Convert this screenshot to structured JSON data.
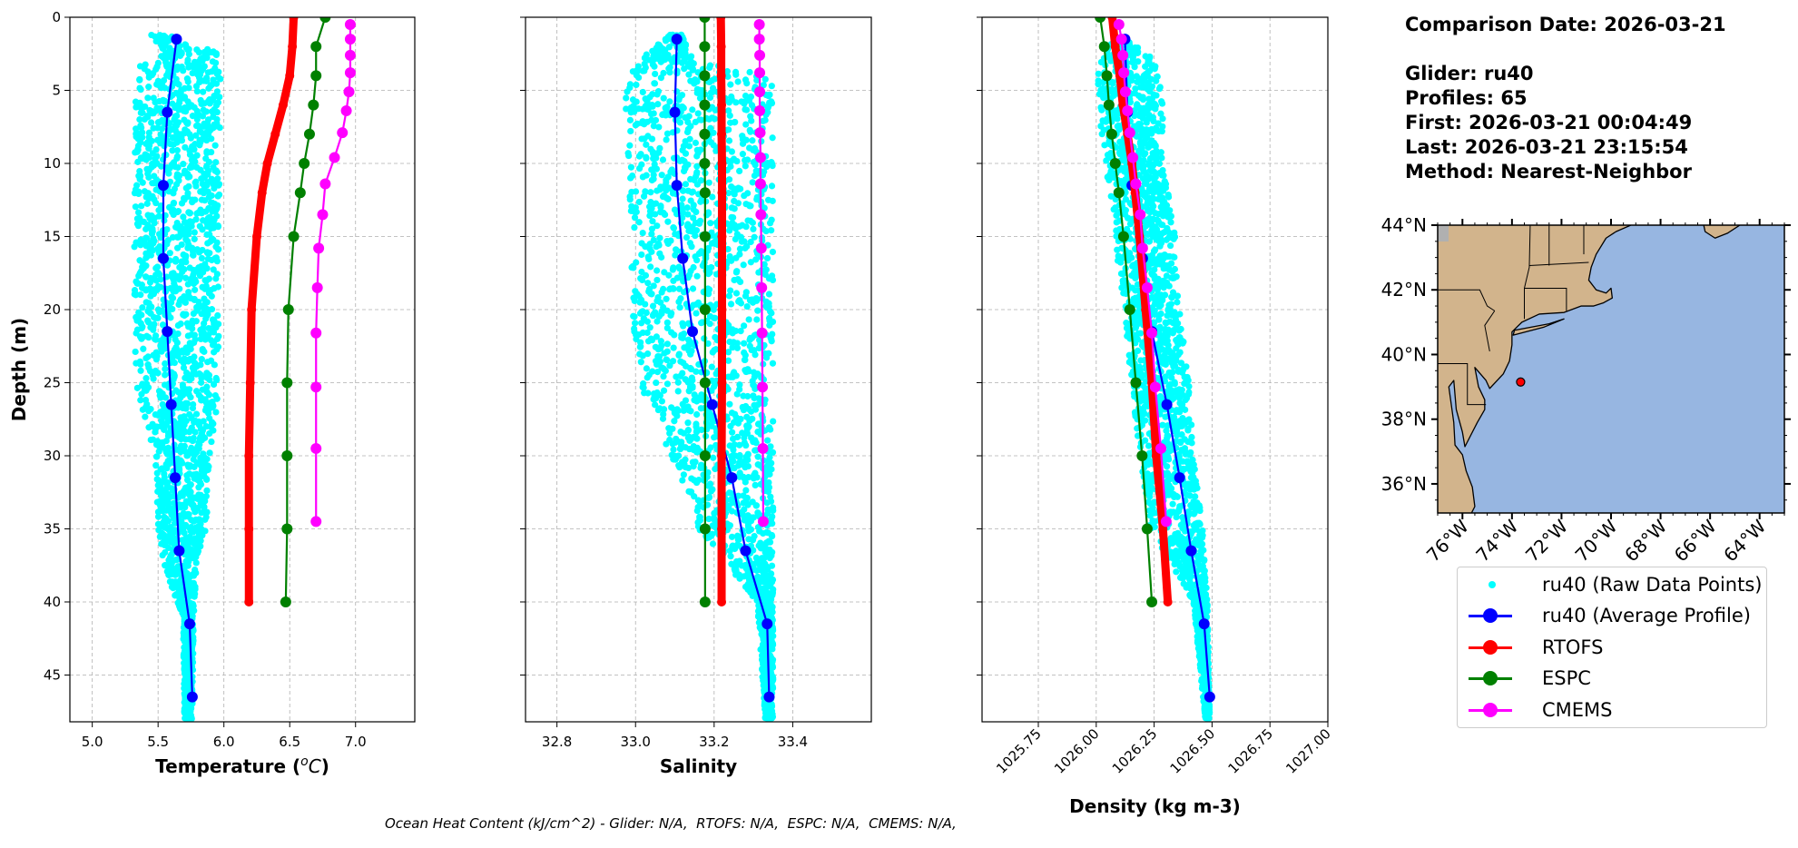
{
  "info": {
    "comparison_date": "Comparison Date: 2026-03-21",
    "glider": "Glider: ru40",
    "profiles": "Profiles: 65",
    "first": "First: 2026-03-21 00:04:49",
    "last": "Last: 2026-03-21 23:15:54",
    "method": "Method: Nearest-Neighbor"
  },
  "footer": "Ocean Heat Content (kJ/cm^2) - Glider: N/A,  RTOFS: N/A,  ESPC: N/A,  CMEMS: N/A,",
  "legend": [
    {
      "label": "ru40 (Raw Data Points)",
      "color": "#00ffff",
      "style": "point"
    },
    {
      "label": "ru40 (Average Profile)",
      "color": "#0000ff",
      "style": "line-marker"
    },
    {
      "label": "RTOFS",
      "color": "#ff0000",
      "style": "line-marker"
    },
    {
      "label": "ESPC",
      "color": "#008000",
      "style": "line-marker"
    },
    {
      "label": "CMEMS",
      "color": "#ff00ff",
      "style": "line-marker"
    }
  ],
  "chart_data": [
    {
      "type": "line",
      "key": "temperature",
      "xlabel_prefix": "Temperature (",
      "xlabel_sup": "o",
      "xlabel_unit": "C",
      "xlabel_suffix": ")",
      "ylabel": "Depth (m)",
      "xlim": [
        4.83,
        7.45
      ],
      "ylim": [
        48.2,
        0
      ],
      "xticks": [
        "5.0",
        "5.5",
        "6.0",
        "6.5",
        "7.0"
      ],
      "yticks": [
        "0",
        "5",
        "10",
        "15",
        "20",
        "25",
        "30",
        "35",
        "40",
        "45"
      ],
      "grid": true,
      "raw": {
        "name": "ru40 (Raw Data Points)",
        "color": "#00ffff",
        "envelope_depth_min_max": [
          [
            1.2,
            5.44,
            5.6
          ],
          [
            2.5,
            5.55,
            5.97
          ],
          [
            3.5,
            5.33,
            5.98
          ],
          [
            15,
            5.32,
            5.96
          ],
          [
            25,
            5.32,
            5.96
          ],
          [
            27,
            5.38,
            5.95
          ],
          [
            30,
            5.48,
            5.89
          ],
          [
            35,
            5.5,
            5.87
          ],
          [
            37,
            5.52,
            5.8
          ],
          [
            41,
            5.69,
            5.77
          ],
          [
            48,
            5.7,
            5.76
          ]
        ]
      },
      "series": [
        {
          "name": "ru40 (Average Profile)",
          "color": "#0000ff",
          "depth": [
            1.5,
            6.5,
            11.5,
            16.5,
            21.5,
            26.5,
            31.5,
            36.5,
            41.5,
            46.5
          ],
          "values": [
            5.64,
            5.57,
            5.54,
            5.54,
            5.57,
            5.6,
            5.63,
            5.66,
            5.74,
            5.76
          ]
        },
        {
          "name": "RTOFS",
          "color": "#ff0000",
          "depth": [
            0,
            2,
            4,
            6,
            8,
            10,
            12,
            15,
            20,
            25,
            30,
            35,
            40
          ],
          "values": [
            6.53,
            6.52,
            6.5,
            6.45,
            6.39,
            6.33,
            6.29,
            6.25,
            6.21,
            6.2,
            6.19,
            6.19,
            6.19
          ]
        },
        {
          "name": "ESPC",
          "color": "#008000",
          "depth": [
            0,
            2,
            4,
            6,
            8,
            10,
            12,
            15,
            20,
            25,
            30,
            35,
            40
          ],
          "values": [
            6.77,
            6.7,
            6.7,
            6.68,
            6.65,
            6.61,
            6.58,
            6.53,
            6.49,
            6.48,
            6.48,
            6.48,
            6.47
          ]
        },
        {
          "name": "CMEMS",
          "color": "#ff00ff",
          "depth": [
            0.5,
            1.5,
            2.6,
            3.8,
            5.1,
            6.4,
            7.9,
            9.6,
            11.4,
            13.5,
            15.8,
            18.5,
            21.6,
            25.3,
            29.5,
            34.5
          ],
          "values": [
            6.96,
            6.96,
            6.96,
            6.96,
            6.95,
            6.93,
            6.9,
            6.84,
            6.77,
            6.75,
            6.72,
            6.71,
            6.7,
            6.7,
            6.7,
            6.7
          ]
        }
      ]
    },
    {
      "type": "line",
      "key": "salinity",
      "xlabel": "Salinity",
      "xlim": [
        32.72,
        33.6
      ],
      "ylim": [
        48.2,
        0
      ],
      "xticks": [
        "32.8",
        "33.0",
        "33.2",
        "33.4"
      ],
      "grid": true,
      "raw": {
        "name": "ru40 (Raw Data Points)",
        "color": "#00ffff",
        "envelope_depth_min_max": [
          [
            1.2,
            33.08,
            33.12
          ],
          [
            3,
            33.01,
            33.15
          ],
          [
            4,
            32.97,
            33.35
          ],
          [
            10,
            32.98,
            33.35
          ],
          [
            20,
            32.99,
            33.35
          ],
          [
            25,
            33.01,
            33.35
          ],
          [
            30,
            33.09,
            33.35
          ],
          [
            35,
            33.16,
            33.35
          ],
          [
            40,
            33.31,
            33.35
          ],
          [
            48,
            33.33,
            33.35
          ]
        ]
      },
      "series": [
        {
          "name": "ru40 (Average Profile)",
          "color": "#0000ff",
          "depth": [
            1.5,
            6.5,
            11.5,
            16.5,
            21.5,
            26.5,
            31.5,
            36.5,
            41.5,
            46.5
          ],
          "values": [
            33.105,
            33.1,
            33.105,
            33.12,
            33.145,
            33.195,
            33.245,
            33.28,
            33.335,
            33.34
          ]
        },
        {
          "name": "RTOFS",
          "color": "#ff0000",
          "depth": [
            0,
            2,
            4,
            6,
            8,
            10,
            12,
            15,
            20,
            25,
            30,
            35,
            40
          ],
          "values": [
            33.217,
            33.218,
            33.218,
            33.219,
            33.219,
            33.22,
            33.22,
            33.22,
            33.22,
            33.22,
            33.219,
            33.219,
            33.219
          ]
        },
        {
          "name": "ESPC",
          "color": "#008000",
          "depth": [
            0,
            2,
            4,
            6,
            8,
            10,
            12,
            15,
            20,
            25,
            30,
            35,
            40
          ],
          "values": [
            33.176,
            33.176,
            33.176,
            33.176,
            33.176,
            33.176,
            33.177,
            33.177,
            33.177,
            33.177,
            33.177,
            33.177,
            33.177
          ]
        },
        {
          "name": "CMEMS",
          "color": "#ff00ff",
          "depth": [
            0.5,
            1.5,
            2.6,
            3.8,
            5.1,
            6.4,
            7.9,
            9.6,
            11.4,
            13.5,
            15.8,
            18.5,
            21.6,
            25.3,
            29.5,
            34.5
          ],
          "values": [
            33.315,
            33.315,
            33.316,
            33.316,
            33.316,
            33.316,
            33.317,
            33.318,
            33.318,
            33.319,
            33.32,
            33.321,
            33.322,
            33.323,
            33.324,
            33.325
          ]
        }
      ]
    },
    {
      "type": "line",
      "key": "density",
      "xlabel": "Density (kg m-3)",
      "xlim": [
        1025.507,
        1027.0
      ],
      "ylim": [
        48.2,
        0
      ],
      "xticks": [
        "1025.75",
        "1026.00",
        "1026.25",
        "1026.50",
        "1026.75",
        "1027.00"
      ],
      "grid": true,
      "raw": {
        "name": "ru40 (Raw Data Points)",
        "color": "#00ffff",
        "envelope_depth_min_max": [
          [
            1.5,
            1026.08,
            1026.13
          ],
          [
            3,
            1026.0,
            1026.26
          ],
          [
            5,
            1026.0,
            1026.285
          ],
          [
            10,
            1026.04,
            1026.29
          ],
          [
            15,
            1026.08,
            1026.34
          ],
          [
            20,
            1026.12,
            1026.36
          ],
          [
            25,
            1026.15,
            1026.4
          ],
          [
            30,
            1026.19,
            1026.42
          ],
          [
            35,
            1026.23,
            1026.46
          ],
          [
            40,
            1026.42,
            1026.48
          ],
          [
            48,
            1026.47,
            1026.49
          ]
        ]
      },
      "series": [
        {
          "name": "ru40 (Average Profile)",
          "color": "#0000ff",
          "depth": [
            1.5,
            6.5,
            11.5,
            16.5,
            21.5,
            26.5,
            31.5,
            36.5,
            41.5,
            46.5
          ],
          "values": [
            1026.124,
            1026.135,
            1026.154,
            1026.2,
            1026.24,
            1026.305,
            1026.36,
            1026.41,
            1026.466,
            1026.49
          ]
        },
        {
          "name": "RTOFS",
          "color": "#ff0000",
          "depth": [
            0,
            2,
            4,
            6,
            8,
            10,
            12,
            15,
            20,
            25,
            30,
            35,
            40
          ],
          "values": [
            1026.069,
            1026.082,
            1026.102,
            1026.115,
            1026.135,
            1026.154,
            1026.168,
            1026.187,
            1026.213,
            1026.24,
            1026.259,
            1026.288,
            1026.309
          ]
        },
        {
          "name": "ESPC",
          "color": "#008000",
          "depth": [
            0,
            2,
            4,
            6,
            8,
            10,
            12,
            15,
            20,
            25,
            30,
            35,
            40
          ],
          "values": [
            1026.017,
            1026.035,
            1026.046,
            1026.055,
            1026.067,
            1026.082,
            1026.098,
            1026.118,
            1026.145,
            1026.171,
            1026.198,
            1026.22,
            1026.24
          ]
        },
        {
          "name": "CMEMS",
          "color": "#ff00ff",
          "depth": [
            0.5,
            1.5,
            2.6,
            3.8,
            5.1,
            6.4,
            7.9,
            9.6,
            11.4,
            13.5,
            15.8,
            18.5,
            21.6,
            25.3,
            29.5,
            34.5
          ],
          "values": [
            1026.098,
            1026.109,
            1026.115,
            1026.119,
            1026.126,
            1026.135,
            1026.145,
            1026.158,
            1026.171,
            1026.19,
            1026.2,
            1026.22,
            1026.24,
            1026.255,
            1026.279,
            1026.302
          ]
        }
      ]
    }
  ],
  "map": {
    "lon_range": [
      -77,
      -63
    ],
    "lat_range": [
      35.1,
      44
    ],
    "lat_ticks": [
      "36°N",
      "38°N",
      "40°N",
      "42°N",
      "44°N"
    ],
    "lon_ticks": [
      "76°W",
      "74°W",
      "72°W",
      "70°W",
      "68°W",
      "66°W",
      "64°W"
    ],
    "land_color": "#d2b48c",
    "ocean_color": "#97b6e1",
    "glider_position": {
      "lon": -73.65,
      "lat": 39.15,
      "color": "#ff0000"
    }
  }
}
